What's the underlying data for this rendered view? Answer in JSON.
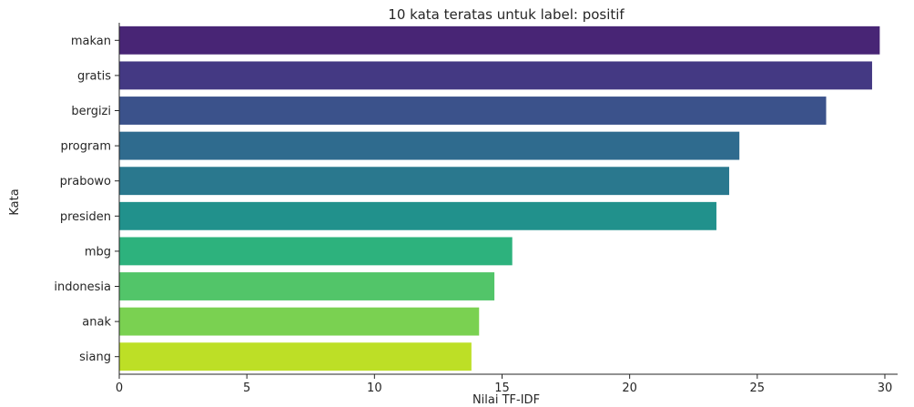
{
  "chart_data": {
    "type": "bar",
    "orientation": "horizontal",
    "title": "10 kata teratas untuk label: positif",
    "xlabel": "Nilai TF-IDF",
    "ylabel": "Kata",
    "xlim": [
      0,
      30.5
    ],
    "xticks": [
      0,
      5,
      10,
      15,
      20,
      25,
      30
    ],
    "grid": false,
    "categories": [
      "makan",
      "gratis",
      "bergizi",
      "program",
      "prabowo",
      "presiden",
      "mbg",
      "indonesia",
      "anak",
      "siang"
    ],
    "values": [
      29.8,
      29.5,
      27.7,
      24.3,
      23.9,
      23.4,
      15.4,
      14.7,
      14.1,
      13.8
    ],
    "colors": [
      "#482575",
      "#443983",
      "#3b528b",
      "#2f6b8e",
      "#2a788e",
      "#21918c",
      "#2db27d",
      "#52c569",
      "#7ad151",
      "#bddf26"
    ]
  }
}
